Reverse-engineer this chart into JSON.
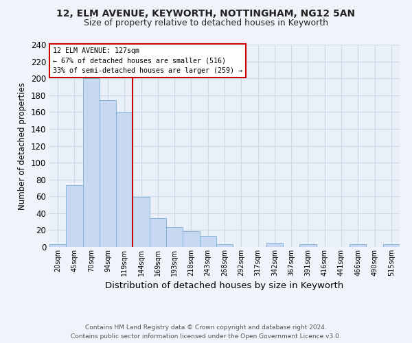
{
  "title": "12, ELM AVENUE, KEYWORTH, NOTTINGHAM, NG12 5AN",
  "subtitle": "Size of property relative to detached houses in Keyworth",
  "xlabel": "Distribution of detached houses by size in Keyworth",
  "ylabel": "Number of detached properties",
  "categories": [
    "20sqm",
    "45sqm",
    "70sqm",
    "94sqm",
    "119sqm",
    "144sqm",
    "169sqm",
    "193sqm",
    "218sqm",
    "243sqm",
    "268sqm",
    "292sqm",
    "317sqm",
    "342sqm",
    "367sqm",
    "391sqm",
    "416sqm",
    "441sqm",
    "466sqm",
    "490sqm",
    "515sqm"
  ],
  "values": [
    3,
    73,
    200,
    174,
    160,
    59,
    34,
    24,
    19,
    13,
    3,
    0,
    0,
    5,
    0,
    3,
    0,
    0,
    3,
    0,
    3
  ],
  "bar_color": "#c6d9f0",
  "bar_edge_color": "#7bafd4",
  "property_label": "12 ELM AVENUE: 127sqm",
  "annotation_line1": "← 67% of detached houses are smaller (516)",
  "annotation_line2": "33% of semi-detached houses are larger (259) →",
  "annotation_box_color": "#ffffff",
  "annotation_box_edge_color": "#cc0000",
  "vline_color": "#cc0000",
  "vline_x": 4.5,
  "ylim": [
    0,
    240
  ],
  "yticks": [
    0,
    20,
    40,
    60,
    80,
    100,
    120,
    140,
    160,
    180,
    200,
    220,
    240
  ],
  "grid_color": "#d0d8e8",
  "background_color": "#eaf0f8",
  "fig_background_color": "#f0f4fa",
  "footer_line1": "Contains HM Land Registry data © Crown copyright and database right 2024.",
  "footer_line2": "Contains public sector information licensed under the Open Government Licence v3.0."
}
